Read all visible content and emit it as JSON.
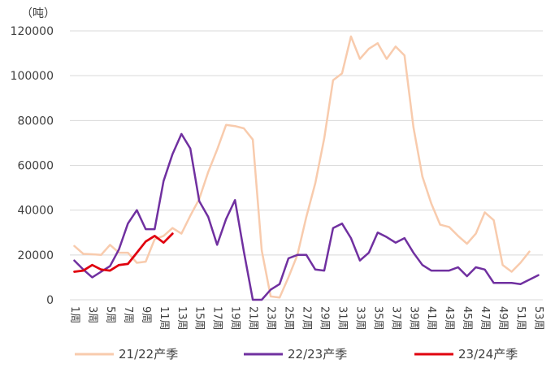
{
  "chart_data": {
    "type": "line",
    "unit_label": "（吨）",
    "ylim": [
      0,
      120000
    ],
    "y_ticks": [
      "0",
      "20000",
      "40000",
      "60000",
      "80000",
      "100000",
      "120000"
    ],
    "x_tick_labels": [
      "1周",
      "3周",
      "5周",
      "7周",
      "9周",
      "11周",
      "13周",
      "15周",
      "17周",
      "19周",
      "21周",
      "23周",
      "25周",
      "27周",
      "29周",
      "31周",
      "33周",
      "35周",
      "37周",
      "39周",
      "41周",
      "43周",
      "45周",
      "47周",
      "49周",
      "51周",
      "53周"
    ],
    "x_max_week": 53,
    "grid": "horizontal",
    "legend_position": "bottom",
    "series": [
      {
        "name": "21/22产季",
        "color": "#f8cbad",
        "weeks": [
          1,
          2,
          3,
          4,
          5,
          6,
          7,
          8,
          9,
          10,
          11,
          12,
          13,
          14,
          15,
          16,
          17,
          18,
          19,
          20,
          21,
          22,
          23,
          24,
          25,
          26,
          27,
          28,
          29,
          30,
          31,
          32,
          33,
          34,
          35,
          36,
          37,
          38,
          39,
          40,
          41,
          42,
          43,
          44,
          45,
          46,
          47,
          48,
          49,
          50,
          51,
          52
        ],
        "values": [
          24000,
          20500,
          20300,
          20000,
          24500,
          21000,
          21000,
          16500,
          17000,
          27000,
          28500,
          32000,
          29500,
          37500,
          45000,
          57000,
          67000,
          78000,
          77500,
          76500,
          71500,
          22000,
          1500,
          1000,
          10000,
          20000,
          37000,
          52000,
          72000,
          98000,
          101000,
          117500,
          107500,
          112000,
          114500,
          107500,
          113000,
          109000,
          77000,
          55000,
          43000,
          33500,
          32500,
          28500,
          25000,
          29500,
          39000,
          35500,
          15500,
          12500,
          16500,
          21500
        ]
      },
      {
        "name": "22/23产季",
        "color": "#7030a0",
        "weeks": [
          1,
          2,
          3,
          4,
          5,
          6,
          7,
          8,
          9,
          10,
          11,
          12,
          13,
          14,
          15,
          16,
          17,
          18,
          19,
          20,
          21,
          22,
          23,
          24,
          25,
          26,
          27,
          28,
          29,
          30,
          31,
          32,
          33,
          34,
          35,
          36,
          37,
          38,
          39,
          40,
          41,
          42,
          43,
          44,
          45,
          46,
          47,
          48,
          49,
          50,
          51,
          52,
          53
        ],
        "values": [
          17500,
          13500,
          10000,
          12500,
          15000,
          22500,
          34000,
          40000,
          31500,
          31500,
          53000,
          65000,
          74000,
          67500,
          44000,
          37000,
          24500,
          36000,
          44500,
          21500,
          0,
          0,
          4500,
          7000,
          18500,
          20000,
          20000,
          13500,
          13000,
          32000,
          34000,
          27500,
          17500,
          21000,
          30000,
          28000,
          25500,
          27500,
          21000,
          15500,
          13000,
          13000,
          13000,
          14500,
          10500,
          14500,
          13500,
          7500,
          7500,
          7500,
          7000,
          9000,
          11000
        ]
      },
      {
        "name": "23/24产季",
        "color": "#e0000e",
        "weeks": [
          1,
          2,
          3,
          4,
          5,
          6,
          7,
          8,
          9,
          10,
          11,
          12
        ],
        "values": [
          12500,
          13000,
          15500,
          13500,
          13000,
          15500,
          16000,
          21000,
          26000,
          28500,
          25500,
          29500
        ]
      }
    ]
  }
}
